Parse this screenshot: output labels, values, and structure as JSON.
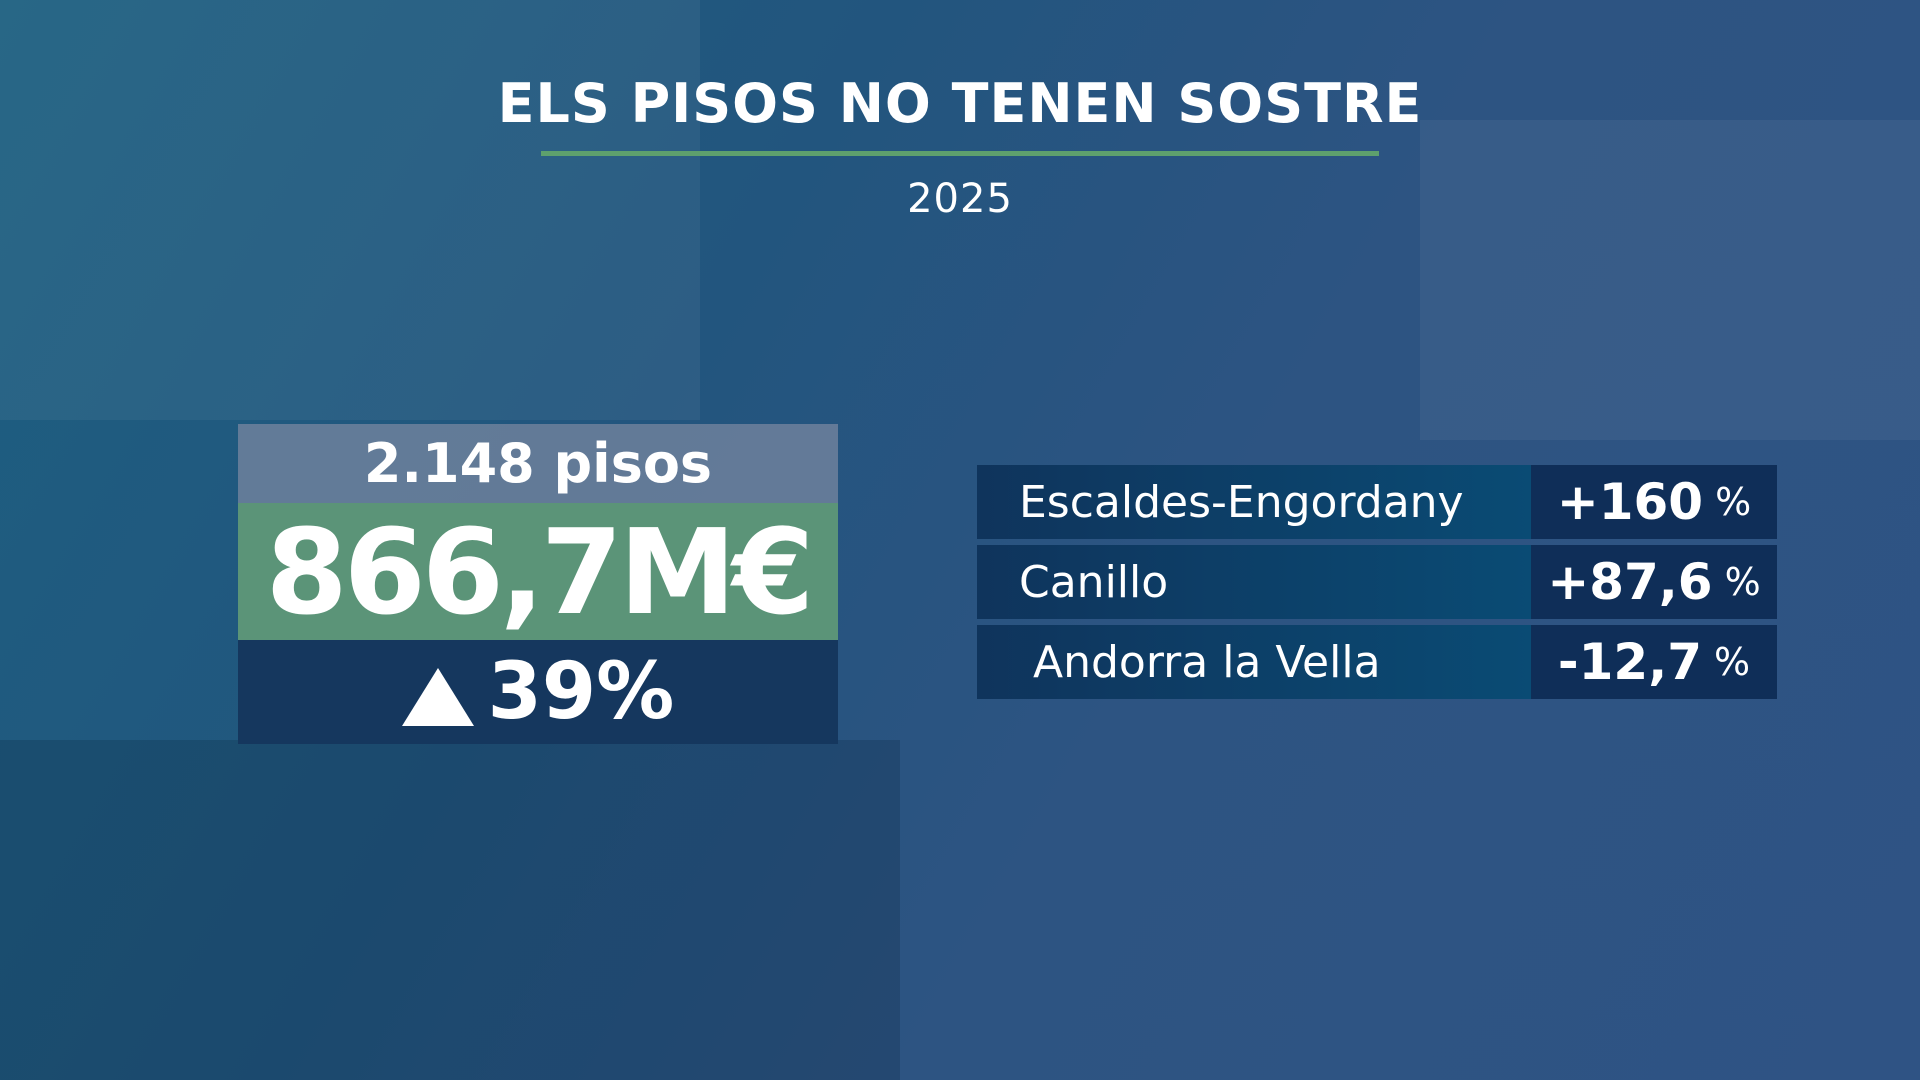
{
  "title": "ELS PISOS NO TENEN SOSTRE",
  "year": "2025",
  "summary": {
    "count": "2.148 pisos",
    "amount": "866,7M€",
    "change": "39%",
    "change_icon": "triangle-up-icon"
  },
  "rows": [
    {
      "name": "Escaldes-Engordany",
      "value": "+160",
      "unit": "%"
    },
    {
      "name": "Canillo",
      "value": "+87,6",
      "unit": "%"
    },
    {
      "name": "Andorra la Vella",
      "value": "-12,7",
      "unit": "%"
    }
  ],
  "colors": {
    "accent_green": "#5ea06d",
    "box_green": "#5b9478",
    "dark_navy": "#15375e"
  }
}
